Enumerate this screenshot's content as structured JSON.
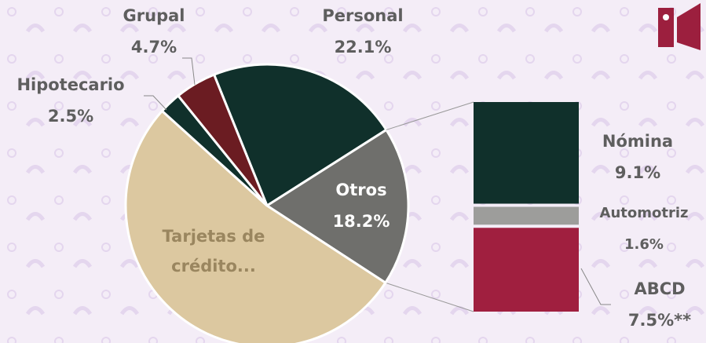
{
  "chart_data": [
    {
      "type": "pie",
      "categories": [
        "Personal",
        "Otros",
        "Tarjetas de crédito...",
        "Hipotecario",
        "Grupal"
      ],
      "values": [
        22.1,
        18.2,
        52.5,
        2.5,
        4.7
      ],
      "value_labels": [
        "22.1%",
        "18.2%",
        null,
        "2.5%",
        "4.7%"
      ],
      "colors": [
        "#10302b",
        "#6f6f6c",
        "#dcc8a0",
        "#10302b",
        "#6b1c22"
      ]
    },
    {
      "type": "bar",
      "categories": [
        "Nómina",
        "Automotriz",
        "ABCD"
      ],
      "values": [
        9.1,
        1.6,
        7.5
      ],
      "value_labels": [
        "9.1%",
        "1.6%",
        "7.5%**"
      ],
      "colors": [
        "#10302b",
        "#9d9d9b",
        "#a01f3f"
      ]
    }
  ]
}
